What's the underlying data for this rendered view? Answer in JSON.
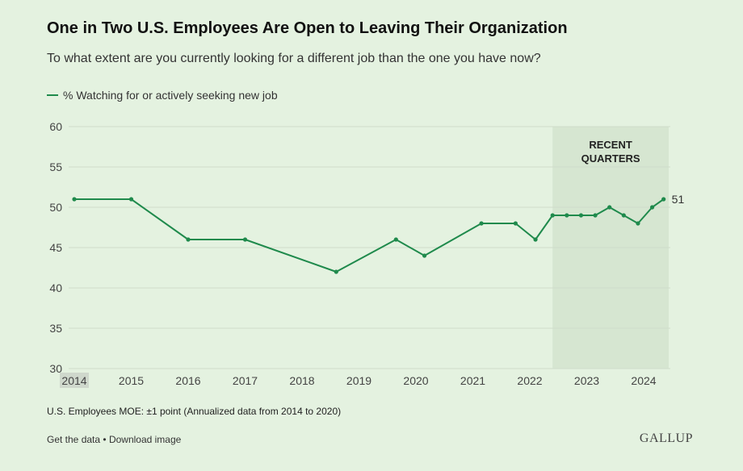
{
  "title": "One in Two U.S. Employees Are Open to Leaving Their Organization",
  "subtitle": "To what extent are you currently looking for a different job than the one you have now?",
  "legend_label": "% Watching for or actively seeking new job",
  "highlight": {
    "line1": "RECENT",
    "line2": "QUARTERS",
    "color": "#d6e6d1"
  },
  "end_label": "51",
  "note": "U.S. Employees MOE: ±1 point (Annualized data from 2014 to 2020)",
  "links": {
    "get_data": "Get the data",
    "separator": "•",
    "download": "Download image"
  },
  "brand": "GALLUP",
  "colors": {
    "line": "#1f8a4c",
    "background": "#e4f2e0",
    "grid": "#cfdcca"
  },
  "chart_data": {
    "type": "line",
    "x_ticks": [
      "2014",
      "2015",
      "2016",
      "2017",
      "2018",
      "2019",
      "2020",
      "2021",
      "2022",
      "2023",
      "2024"
    ],
    "y_ticks": [
      30,
      35,
      40,
      45,
      50,
      55,
      60
    ],
    "ylim": [
      30,
      60
    ],
    "xlim": [
      2014,
      2024.6
    ],
    "highlight_range": [
      2022.4,
      2024.45
    ],
    "series": [
      {
        "name": "% Watching for or actively seeking new job",
        "points": [
          {
            "x": 2014.0,
            "y": 51
          },
          {
            "x": 2015.0,
            "y": 51
          },
          {
            "x": 2016.0,
            "y": 46
          },
          {
            "x": 2017.0,
            "y": 46
          },
          {
            "x": 2018.6,
            "y": 42
          },
          {
            "x": 2019.65,
            "y": 46
          },
          {
            "x": 2020.15,
            "y": 44
          },
          {
            "x": 2021.15,
            "y": 48
          },
          {
            "x": 2021.75,
            "y": 48
          },
          {
            "x": 2022.1,
            "y": 46
          },
          {
            "x": 2022.4,
            "y": 49
          },
          {
            "x": 2022.65,
            "y": 49
          },
          {
            "x": 2022.9,
            "y": 49
          },
          {
            "x": 2023.15,
            "y": 49
          },
          {
            "x": 2023.4,
            "y": 50
          },
          {
            "x": 2023.65,
            "y": 49
          },
          {
            "x": 2023.9,
            "y": 48
          },
          {
            "x": 2024.15,
            "y": 50
          },
          {
            "x": 2024.35,
            "y": 51
          }
        ]
      }
    ]
  }
}
